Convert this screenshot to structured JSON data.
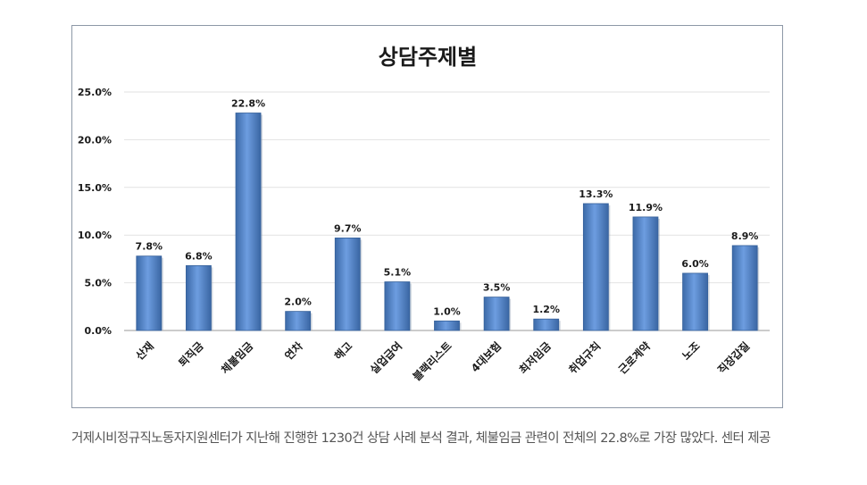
{
  "chart_data": {
    "type": "bar",
    "title": "상담주제별",
    "categories": [
      "산재",
      "퇴직금",
      "체불임금",
      "연차",
      "해고",
      "실업급여",
      "블랙리스트",
      "4대보험",
      "최저임금",
      "취업규칙",
      "근로계약",
      "노조",
      "직장갑질"
    ],
    "values": [
      7.8,
      6.8,
      22.8,
      2.0,
      9.7,
      5.1,
      1.0,
      3.5,
      1.2,
      13.3,
      11.9,
      6.0,
      8.9
    ],
    "value_labels": [
      "7.8%",
      "6.8%",
      "22.8%",
      "2.0%",
      "9.7%",
      "5.1%",
      "1.0%",
      "3.5%",
      "1.2%",
      "13.3%",
      "11.9%",
      "6.0%",
      "8.9%"
    ],
    "yticks": [
      0,
      5,
      10,
      15,
      20,
      25
    ],
    "ytick_labels": [
      "0.0%",
      "5.0%",
      "10.0%",
      "15.0%",
      "20.0%",
      "25.0%"
    ],
    "ylim": [
      0,
      25
    ],
    "xlabel": "",
    "ylabel": "",
    "grid": true,
    "legend": "none",
    "bar_color": "#4f81bd"
  },
  "caption": "거제시비정규직노동자지원센터가 지난해 진행한 1230건 상담 사례 분석 결과, 체불임금 관련이 전체의 22.8%로 가장 많았다. 센터 제공"
}
